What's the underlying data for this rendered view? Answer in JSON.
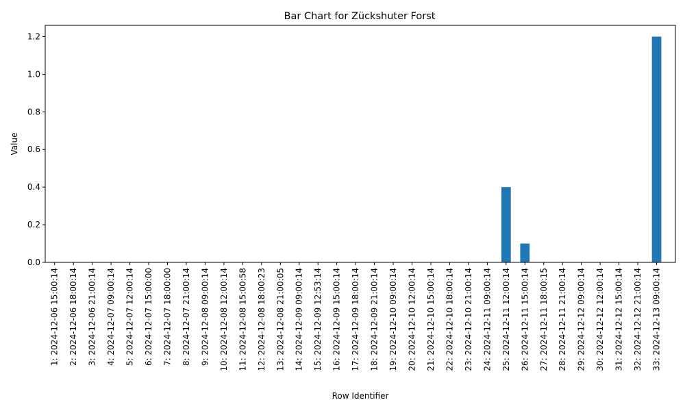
{
  "chart_data": {
    "type": "bar",
    "title": "Bar Chart for Zückshuter Forst",
    "xlabel": "Row Identifier",
    "ylabel": "Value",
    "ylim": [
      0,
      1.26
    ],
    "yticks": [
      "0.0",
      "0.2",
      "0.4",
      "0.6",
      "0.8",
      "1.0",
      "1.2"
    ],
    "ytick_values": [
      0,
      0.2,
      0.4,
      0.6,
      0.8,
      1.0,
      1.2
    ],
    "grid": false,
    "legend": "none",
    "bar_color": "#1f77b4",
    "categories": [
      "1: 2024-12-06 15:00:14",
      "2: 2024-12-06 18:00:14",
      "3: 2024-12-06 21:00:14",
      "4: 2024-12-07 09:00:14",
      "5: 2024-12-07 12:00:14",
      "6: 2024-12-07 15:00:00",
      "7: 2024-12-07 18:00:00",
      "8: 2024-12-07 21:00:14",
      "9: 2024-12-08 09:00:14",
      "10: 2024-12-08 12:00:14",
      "11: 2024-12-08 15:00:58",
      "12: 2024-12-08 18:00:23",
      "13: 2024-12-08 21:00:05",
      "14: 2024-12-09 09:00:14",
      "15: 2024-12-09 12:53:14",
      "16: 2024-12-09 15:00:14",
      "17: 2024-12-09 18:00:14",
      "18: 2024-12-09 21:00:14",
      "19: 2024-12-10 09:00:14",
      "20: 2024-12-10 12:00:14",
      "21: 2024-12-10 15:00:14",
      "22: 2024-12-10 18:00:14",
      "23: 2024-12-10 21:00:14",
      "24: 2024-12-11 09:00:14",
      "25: 2024-12-11 12:00:14",
      "26: 2024-12-11 15:00:14",
      "27: 2024-12-11 18:00:15",
      "28: 2024-12-11 21:00:14",
      "29: 2024-12-12 09:00:14",
      "30: 2024-12-12 12:00:14",
      "31: 2024-12-12 15:00:14",
      "32: 2024-12-12 21:00:14",
      "33: 2024-12-13 09:00:14"
    ],
    "values": [
      0,
      0,
      0,
      0,
      0,
      0,
      0,
      0,
      0,
      0,
      0,
      0,
      0,
      0,
      0,
      0,
      0,
      0,
      0,
      0,
      0,
      0,
      0,
      0,
      0.4,
      0.1,
      0,
      0,
      0,
      0,
      0,
      0,
      1.2
    ]
  }
}
